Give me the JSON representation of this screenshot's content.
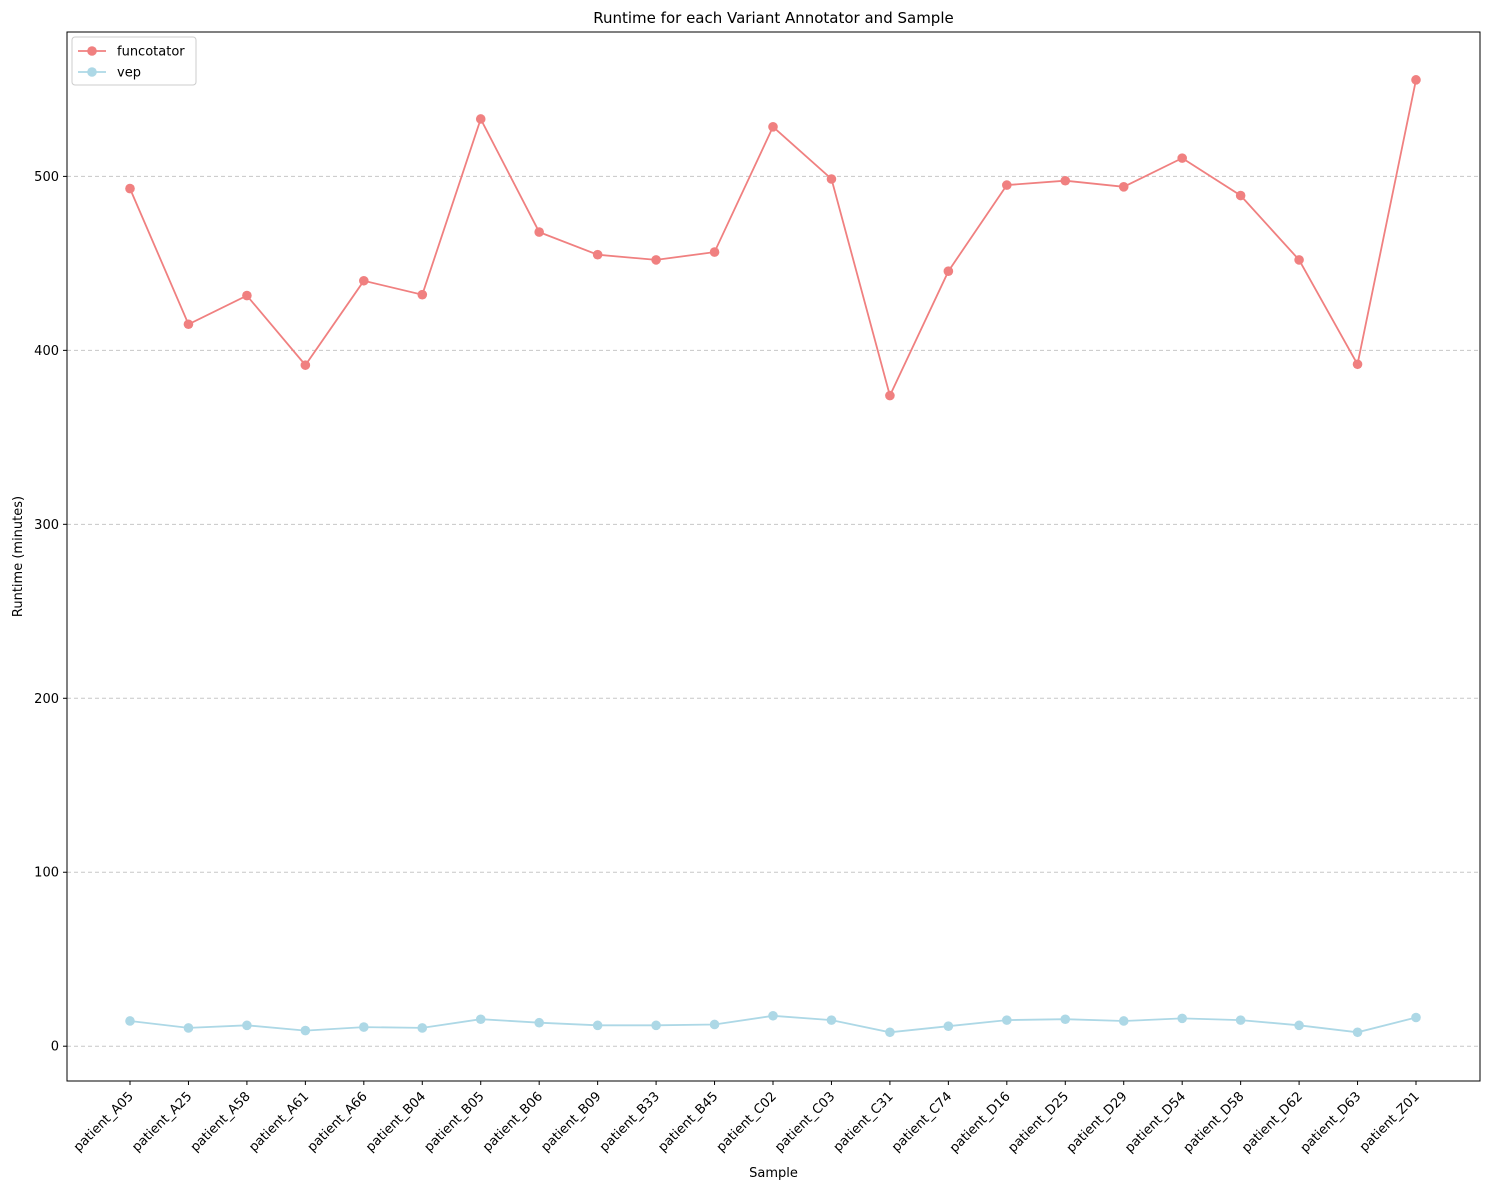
{
  "chart_data": {
    "type": "line",
    "title": "Runtime for each Variant Annotator and Sample",
    "xlabel": "Sample",
    "ylabel": "Runtime (minutes)",
    "categories": [
      "patient_A05",
      "patient_A25",
      "patient_A58",
      "patient_A61",
      "patient_A66",
      "patient_B04",
      "patient_B05",
      "patient_B06",
      "patient_B09",
      "patient_B33",
      "patient_B45",
      "patient_C02",
      "patient_C03",
      "patient_C31",
      "patient_C74",
      "patient_D16",
      "patient_D25",
      "patient_D29",
      "patient_D54",
      "patient_D58",
      "patient_D62",
      "patient_D63",
      "patient_Z01"
    ],
    "ylim": [
      -20,
      583
    ],
    "yticks": [
      0,
      100,
      200,
      300,
      400,
      500
    ],
    "grid": "y-dashed",
    "legend_position": "top-left",
    "series": [
      {
        "name": "funcotator",
        "color": "#f08080",
        "values": [
          493,
          415,
          431.5,
          391.5,
          440,
          432,
          533,
          468,
          455,
          452,
          456.5,
          528.5,
          498.5,
          374,
          445.5,
          495,
          497.5,
          494,
          510.5,
          489,
          452,
          392,
          555.5
        ]
      },
      {
        "name": "vep",
        "color": "#add8e6",
        "values": [
          14.5,
          10.5,
          12,
          9,
          11,
          10.5,
          15.5,
          13.5,
          12,
          12,
          12.5,
          17.5,
          15,
          8,
          11.5,
          15,
          15.5,
          14.5,
          16,
          15,
          12,
          8,
          16.5
        ]
      }
    ]
  }
}
